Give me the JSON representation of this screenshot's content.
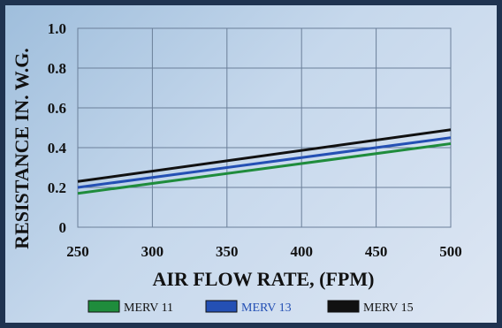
{
  "chart_data": {
    "type": "line",
    "xlabel": "AIR FLOW RATE, (FPM)",
    "ylabel": "RESISTANCE IN. W.G.",
    "xlim": [
      250,
      500
    ],
    "ylim": [
      0,
      1.0
    ],
    "x_ticks": [
      "250",
      "300",
      "350",
      "400",
      "450",
      "500"
    ],
    "y_ticks": [
      "0",
      "0.2",
      "0.4",
      "0.6",
      "0.8",
      "1.0"
    ],
    "grid": true,
    "legend_position": "bottom",
    "series": [
      {
        "name": "MERV 11",
        "color": "#1f8c3c",
        "label_color": "#111111",
        "x": [
          250,
          500
        ],
        "y": [
          0.17,
          0.42
        ]
      },
      {
        "name": "MERV 13",
        "color": "#2450b4",
        "label_color": "#2450b4",
        "x": [
          250,
          500
        ],
        "y": [
          0.2,
          0.45
        ]
      },
      {
        "name": "MERV 15",
        "color": "#111111",
        "label_color": "#111111",
        "x": [
          250,
          500
        ],
        "y": [
          0.23,
          0.49
        ]
      }
    ]
  }
}
